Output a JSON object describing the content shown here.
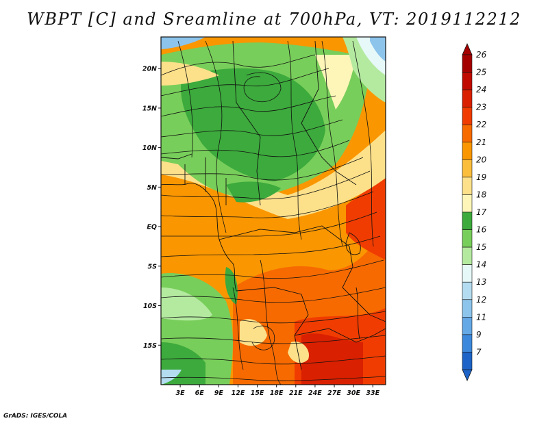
{
  "title": "WBPT [C] and Sreamline at 700hPa, VT: 2019112212",
  "credit": "GrADS: IGES/COLA",
  "map": {
    "variable": "Wet-bulb potential temperature",
    "level": "700hPa",
    "lon_range": [
      0,
      35
    ],
    "lat_range": [
      -20,
      24
    ],
    "x_ticks": [
      {
        "value": 3,
        "label": "3E"
      },
      {
        "value": 6,
        "label": "6E"
      },
      {
        "value": 9,
        "label": "9E"
      },
      {
        "value": 12,
        "label": "12E"
      },
      {
        "value": 15,
        "label": "15E"
      },
      {
        "value": 18,
        "label": "18E"
      },
      {
        "value": 21,
        "label": "21E"
      },
      {
        "value": 24,
        "label": "24E"
      },
      {
        "value": 27,
        "label": "27E"
      },
      {
        "value": 30,
        "label": "30E"
      },
      {
        "value": 33,
        "label": "33E"
      }
    ],
    "y_ticks": [
      {
        "value": 20,
        "label": "20N"
      },
      {
        "value": 15,
        "label": "15N"
      },
      {
        "value": 10,
        "label": "10N"
      },
      {
        "value": 5,
        "label": "5N"
      },
      {
        "value": 0,
        "label": "EQ"
      },
      {
        "value": -5,
        "label": "5S"
      },
      {
        "value": -10,
        "label": "10S"
      },
      {
        "value": -15,
        "label": "15S"
      }
    ]
  },
  "colorbar": {
    "levels": [
      {
        "label": "26",
        "color": "#a50000"
      },
      {
        "label": "25",
        "color": "#c00a00"
      },
      {
        "label": "24",
        "color": "#d92000"
      },
      {
        "label": "23",
        "color": "#f03c00"
      },
      {
        "label": "22",
        "color": "#f76a00"
      },
      {
        "label": "21",
        "color": "#fa9600"
      },
      {
        "label": "20",
        "color": "#fbbd3c"
      },
      {
        "label": "19",
        "color": "#fde08a"
      },
      {
        "label": "18",
        "color": "#fdf6b8"
      },
      {
        "label": "17",
        "color": "#3caa3c"
      },
      {
        "label": "16",
        "color": "#78ce5a"
      },
      {
        "label": "15",
        "color": "#b4eaa0"
      },
      {
        "label": "14",
        "color": "#e6f8f8"
      },
      {
        "label": "13",
        "color": "#b4dcf0"
      },
      {
        "label": "12",
        "color": "#8cc4ec"
      },
      {
        "label": "11",
        "color": "#64a8e6"
      },
      {
        "label": "9",
        "color": "#3c88dc"
      },
      {
        "label": "7",
        "color": "#1e64c8"
      }
    ],
    "top_color": "#a50000",
    "bottom_color": "#1e64c8"
  }
}
